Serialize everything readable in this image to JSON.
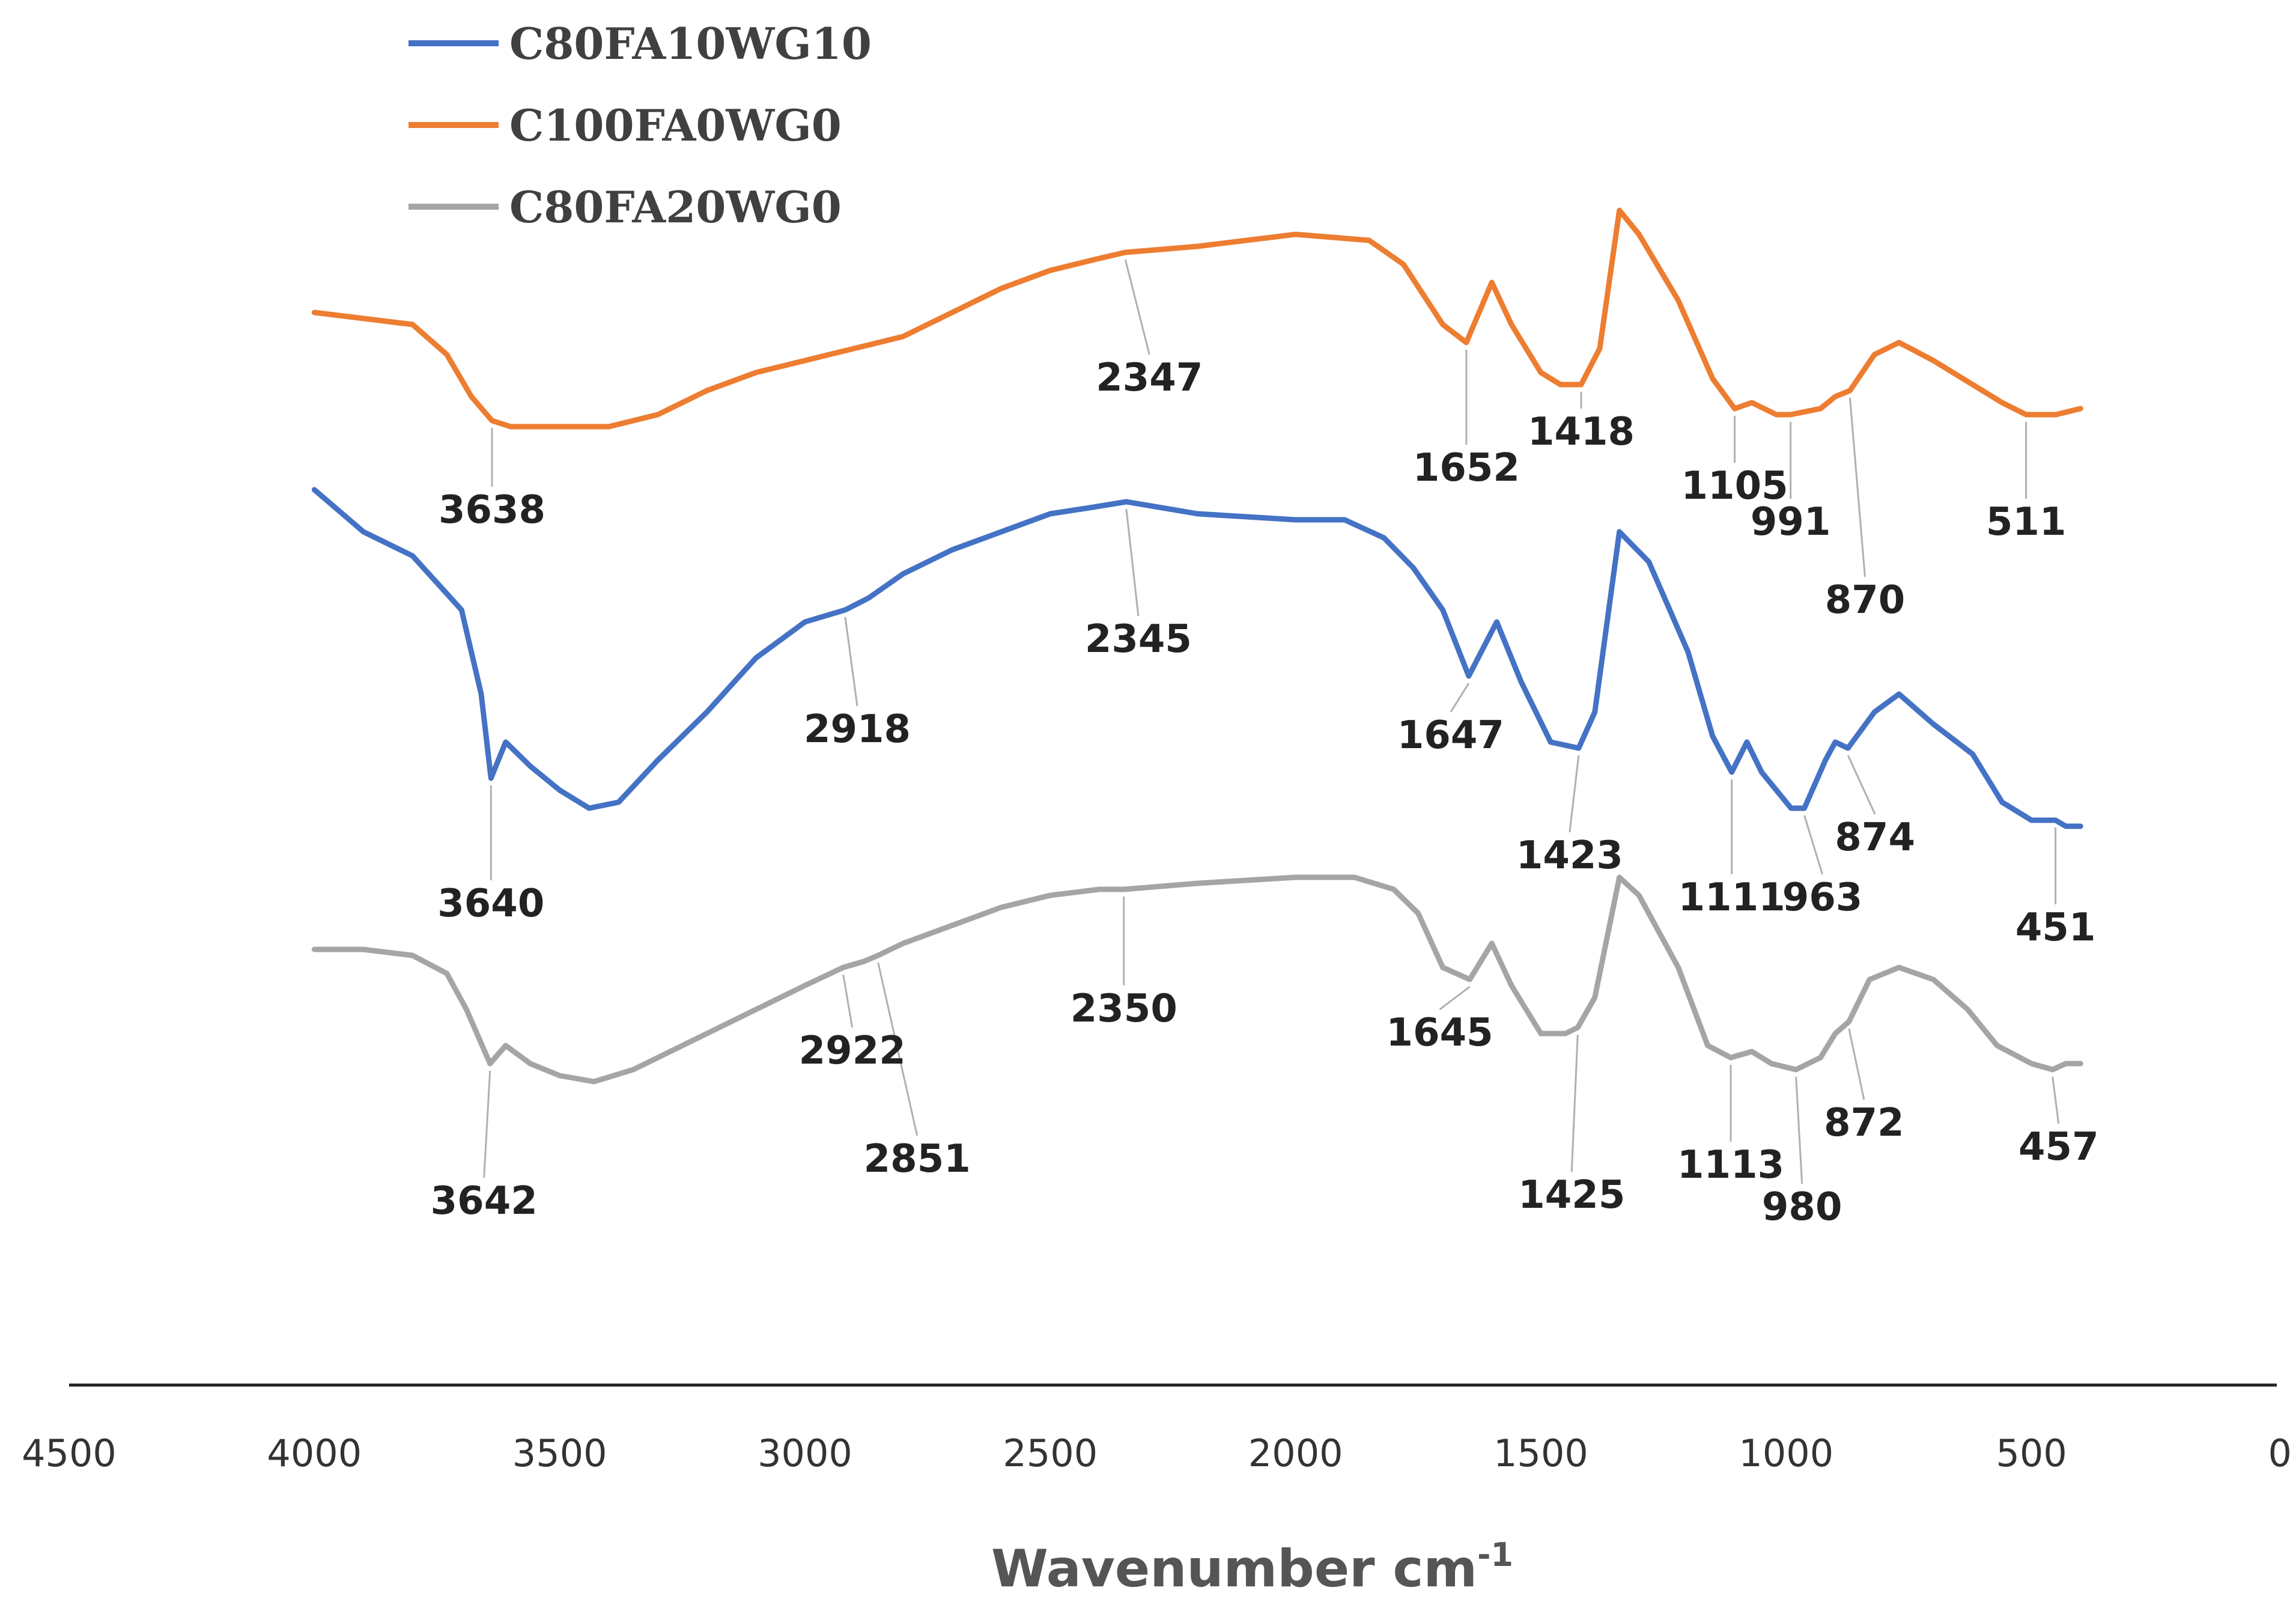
{
  "chart_data": {
    "type": "line",
    "xlabel": "Wavenumber cm",
    "xlabel_superscript": "-1",
    "xlim": [
      4500,
      0
    ],
    "x_reversed": true,
    "x_ticks": [
      4500,
      4000,
      3500,
      3000,
      2500,
      2000,
      1500,
      1000,
      500,
      0
    ],
    "y_axis_shown": false,
    "grid": false,
    "legend_position": "top-left",
    "series": [
      {
        "name": "C80FA10WG10",
        "color": "#4472C4",
        "points": [
          [
            4000,
            0.0
          ],
          [
            3900,
            0.07
          ],
          [
            3800,
            0.11
          ],
          [
            3700,
            0.2
          ],
          [
            3660,
            0.34
          ],
          [
            3640,
            0.48
          ],
          [
            3610,
            0.42
          ],
          [
            3560,
            0.46
          ],
          [
            3500,
            0.5
          ],
          [
            3440,
            0.53
          ],
          [
            3380,
            0.52
          ],
          [
            3300,
            0.45
          ],
          [
            3200,
            0.37
          ],
          [
            3100,
            0.28
          ],
          [
            3000,
            0.22
          ],
          [
            2918,
            0.2
          ],
          [
            2870,
            0.18
          ],
          [
            2800,
            0.14
          ],
          [
            2700,
            0.1
          ],
          [
            2600,
            0.07
          ],
          [
            2500,
            0.04
          ],
          [
            2420,
            0.03
          ],
          [
            2345,
            0.02
          ],
          [
            2200,
            0.04
          ],
          [
            2000,
            0.05
          ],
          [
            1900,
            0.05
          ],
          [
            1820,
            0.08
          ],
          [
            1760,
            0.13
          ],
          [
            1700,
            0.2
          ],
          [
            1647,
            0.31
          ],
          [
            1590,
            0.22
          ],
          [
            1540,
            0.32
          ],
          [
            1480,
            0.42
          ],
          [
            1423,
            0.43
          ],
          [
            1390,
            0.37
          ],
          [
            1340,
            0.07
          ],
          [
            1280,
            0.12
          ],
          [
            1200,
            0.27
          ],
          [
            1150,
            0.41
          ],
          [
            1111,
            0.47
          ],
          [
            1080,
            0.42
          ],
          [
            1050,
            0.47
          ],
          [
            990,
            0.53
          ],
          [
            963,
            0.53
          ],
          [
            920,
            0.45
          ],
          [
            900,
            0.42
          ],
          [
            874,
            0.43
          ],
          [
            820,
            0.37
          ],
          [
            770,
            0.34
          ],
          [
            700,
            0.39
          ],
          [
            620,
            0.44
          ],
          [
            560,
            0.52
          ],
          [
            500,
            0.55
          ],
          [
            451,
            0.55
          ],
          [
            430,
            0.56
          ],
          [
            400,
            0.56
          ]
        ],
        "peaks": [
          3640,
          2918,
          2345,
          1647,
          1423,
          1111,
          963,
          874,
          451
        ]
      },
      {
        "name": "C100FA0WG0",
        "color": "#ED7D31",
        "points": [
          [
            4000,
            0.0
          ],
          [
            3900,
            0.01
          ],
          [
            3800,
            0.02
          ],
          [
            3730,
            0.07
          ],
          [
            3680,
            0.14
          ],
          [
            3638,
            0.18
          ],
          [
            3600,
            0.19
          ],
          [
            3500,
            0.19
          ],
          [
            3400,
            0.19
          ],
          [
            3300,
            0.17
          ],
          [
            3200,
            0.13
          ],
          [
            3100,
            0.1
          ],
          [
            3000,
            0.08
          ],
          [
            2900,
            0.06
          ],
          [
            2800,
            0.04
          ],
          [
            2700,
            0.0
          ],
          [
            2600,
            -0.04
          ],
          [
            2500,
            -0.07
          ],
          [
            2400,
            -0.09
          ],
          [
            2347,
            -0.1
          ],
          [
            2200,
            -0.11
          ],
          [
            2000,
            -0.13
          ],
          [
            1850,
            -0.12
          ],
          [
            1780,
            -0.08
          ],
          [
            1700,
            0.02
          ],
          [
            1652,
            0.05
          ],
          [
            1600,
            -0.05
          ],
          [
            1560,
            0.02
          ],
          [
            1500,
            0.1
          ],
          [
            1460,
            0.12
          ],
          [
            1418,
            0.12
          ],
          [
            1380,
            0.06
          ],
          [
            1340,
            -0.17
          ],
          [
            1300,
            -0.13
          ],
          [
            1220,
            -0.02
          ],
          [
            1150,
            0.11
          ],
          [
            1105,
            0.16
          ],
          [
            1070,
            0.15
          ],
          [
            1020,
            0.17
          ],
          [
            991,
            0.17
          ],
          [
            930,
            0.16
          ],
          [
            900,
            0.14
          ],
          [
            870,
            0.13
          ],
          [
            820,
            0.07
          ],
          [
            770,
            0.05
          ],
          [
            700,
            0.08
          ],
          [
            620,
            0.12
          ],
          [
            560,
            0.15
          ],
          [
            511,
            0.17
          ],
          [
            450,
            0.17
          ],
          [
            400,
            0.16
          ]
        ],
        "peaks": [
          3638,
          2347,
          1652,
          1418,
          1105,
          991,
          870,
          511
        ]
      },
      {
        "name": "C80FA20WG0",
        "color": "#A5A5A5",
        "points": [
          [
            4000,
            0.0
          ],
          [
            3900,
            0.0
          ],
          [
            3800,
            0.01
          ],
          [
            3730,
            0.04
          ],
          [
            3690,
            0.1
          ],
          [
            3642,
            0.19
          ],
          [
            3610,
            0.16
          ],
          [
            3560,
            0.19
          ],
          [
            3500,
            0.21
          ],
          [
            3430,
            0.22
          ],
          [
            3350,
            0.2
          ],
          [
            3200,
            0.14
          ],
          [
            3100,
            0.1
          ],
          [
            3000,
            0.06
          ],
          [
            2922,
            0.03
          ],
          [
            2880,
            0.02
          ],
          [
            2851,
            0.01
          ],
          [
            2800,
            -0.01
          ],
          [
            2700,
            -0.04
          ],
          [
            2600,
            -0.07
          ],
          [
            2500,
            -0.09
          ],
          [
            2400,
            -0.1
          ],
          [
            2350,
            -0.1
          ],
          [
            2200,
            -0.11
          ],
          [
            2000,
            -0.12
          ],
          [
            1880,
            -0.12
          ],
          [
            1800,
            -0.1
          ],
          [
            1750,
            -0.06
          ],
          [
            1700,
            0.03
          ],
          [
            1645,
            0.05
          ],
          [
            1600,
            -0.01
          ],
          [
            1560,
            0.06
          ],
          [
            1500,
            0.14
          ],
          [
            1450,
            0.14
          ],
          [
            1425,
            0.13
          ],
          [
            1390,
            0.08
          ],
          [
            1340,
            -0.12
          ],
          [
            1300,
            -0.09
          ],
          [
            1220,
            0.03
          ],
          [
            1160,
            0.16
          ],
          [
            1113,
            0.18
          ],
          [
            1070,
            0.17
          ],
          [
            1030,
            0.19
          ],
          [
            980,
            0.2
          ],
          [
            930,
            0.18
          ],
          [
            900,
            0.14
          ],
          [
            872,
            0.12
          ],
          [
            830,
            0.05
          ],
          [
            770,
            0.03
          ],
          [
            700,
            0.05
          ],
          [
            630,
            0.1
          ],
          [
            570,
            0.16
          ],
          [
            500,
            0.19
          ],
          [
            457,
            0.2
          ],
          [
            430,
            0.19
          ],
          [
            400,
            0.19
          ]
        ],
        "peaks": [
          3642,
          2922,
          2851,
          2350,
          1645,
          1425,
          1113,
          980,
          872,
          457
        ]
      }
    ],
    "peak_labels": [
      {
        "series": "C100FA0WG0",
        "x": 3638,
        "text": "3638",
        "side": "below"
      },
      {
        "series": "C100FA0WG0",
        "x": 2347,
        "text": "2347",
        "side": "below"
      },
      {
        "series": "C100FA0WG0",
        "x": 1652,
        "text": "1652",
        "side": "below"
      },
      {
        "series": "C100FA0WG0",
        "x": 1418,
        "text": "1418",
        "side": "below"
      },
      {
        "series": "C100FA0WG0",
        "x": 1105,
        "text": "1105",
        "side": "below"
      },
      {
        "series": "C100FA0WG0",
        "x": 991,
        "text": "991",
        "side": "below"
      },
      {
        "series": "C100FA0WG0",
        "x": 870,
        "text": "870",
        "side": "below"
      },
      {
        "series": "C100FA0WG0",
        "x": 511,
        "text": "511",
        "side": "below"
      },
      {
        "series": "C80FA10WG10",
        "x": 3640,
        "text": "3640",
        "side": "below"
      },
      {
        "series": "C80FA10WG10",
        "x": 2918,
        "text": "2918",
        "side": "below"
      },
      {
        "series": "C80FA10WG10",
        "x": 2345,
        "text": "2345",
        "side": "below"
      },
      {
        "series": "C80FA10WG10",
        "x": 1647,
        "text": "1647",
        "side": "below"
      },
      {
        "series": "C80FA10WG10",
        "x": 1423,
        "text": "1423",
        "side": "below"
      },
      {
        "series": "C80FA10WG10",
        "x": 1111,
        "text": "1111",
        "side": "below"
      },
      {
        "series": "C80FA10WG10",
        "x": 963,
        "text": "963",
        "side": "below"
      },
      {
        "series": "C80FA10WG10",
        "x": 874,
        "text": "874",
        "side": "below"
      },
      {
        "series": "C80FA10WG10",
        "x": 451,
        "text": "451",
        "side": "below"
      },
      {
        "series": "C80FA20WG0",
        "x": 3642,
        "text": "3642",
        "side": "below"
      },
      {
        "series": "C80FA20WG0",
        "x": 2922,
        "text": "2922",
        "side": "below"
      },
      {
        "series": "C80FA20WG0",
        "x": 2851,
        "text": "2851",
        "side": "below"
      },
      {
        "series": "C80FA20WG0",
        "x": 2350,
        "text": "2350",
        "side": "below"
      },
      {
        "series": "C80FA20WG0",
        "x": 1645,
        "text": "1645",
        "side": "below"
      },
      {
        "series": "C80FA20WG0",
        "x": 1425,
        "text": "1425",
        "side": "below"
      },
      {
        "series": "C80FA20WG0",
        "x": 1113,
        "text": "1113",
        "side": "below"
      },
      {
        "series": "C80FA20WG0",
        "x": 980,
        "text": "980",
        "side": "below"
      },
      {
        "series": "C80FA20WG0",
        "x": 872,
        "text": "872",
        "side": "below"
      },
      {
        "series": "C80FA20WG0",
        "x": 457,
        "text": "457",
        "side": "below"
      }
    ]
  }
}
